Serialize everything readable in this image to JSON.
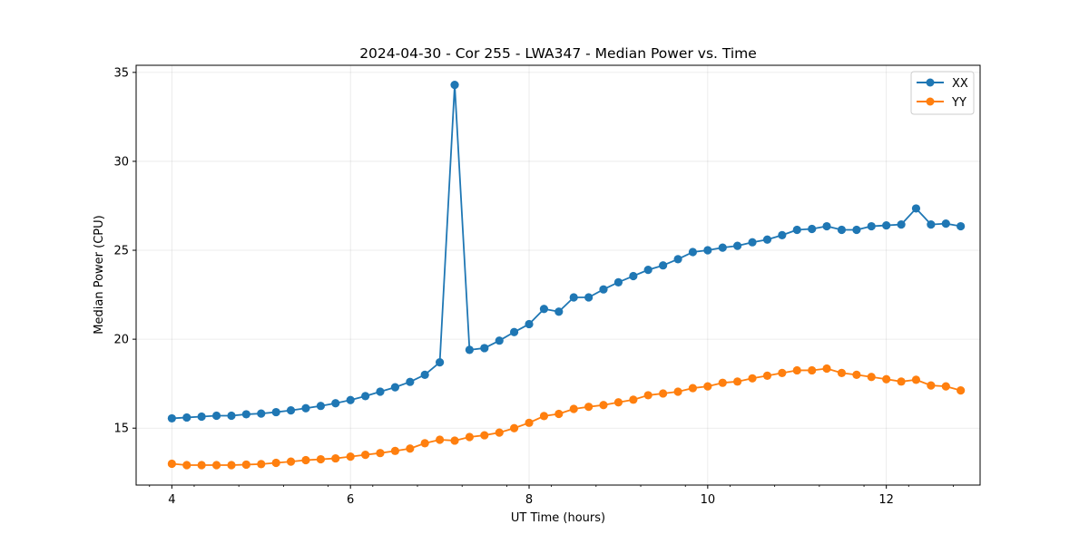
{
  "chart_data": {
    "type": "line",
    "title": "2024-04-30 - Cor 255 - LWA347 - Median Power vs. Time",
    "xlabel": "UT Time (hours)",
    "ylabel": "Median Power (CPU)",
    "xlim": [
      3.6,
      13.05
    ],
    "ylim": [
      11.8,
      35.4
    ],
    "xticks": [
      4,
      6,
      8,
      10,
      12
    ],
    "yticks": [
      15,
      20,
      25,
      30,
      35
    ],
    "xtick_labels": [
      "4",
      "6",
      "8",
      "10",
      "12"
    ],
    "ytick_labels": [
      "15",
      "20",
      "25",
      "30",
      "35"
    ],
    "grid": true,
    "legend_position": "top-right",
    "x": [
      4.0,
      4.167,
      4.333,
      4.5,
      4.667,
      4.833,
      5.0,
      5.167,
      5.333,
      5.5,
      5.667,
      5.833,
      6.0,
      6.167,
      6.333,
      6.5,
      6.667,
      6.833,
      7.0,
      7.167,
      7.333,
      7.5,
      7.667,
      7.833,
      8.0,
      8.167,
      8.333,
      8.5,
      8.667,
      8.833,
      9.0,
      9.167,
      9.333,
      9.5,
      9.667,
      9.833,
      10.0,
      10.167,
      10.333,
      10.5,
      10.667,
      10.833,
      11.0,
      11.167,
      11.333,
      11.5,
      11.667,
      11.833,
      12.0,
      12.167,
      12.333,
      12.5,
      12.667,
      12.833
    ],
    "series": [
      {
        "name": "XX",
        "color": "#1f77b4",
        "values": [
          15.55,
          15.6,
          15.65,
          15.7,
          15.7,
          15.78,
          15.82,
          15.9,
          16.0,
          16.12,
          16.25,
          16.4,
          16.58,
          16.8,
          17.05,
          17.3,
          17.6,
          18.0,
          18.7,
          34.3,
          19.4,
          19.5,
          19.92,
          20.4,
          20.85,
          21.7,
          21.55,
          22.35,
          22.35,
          22.8,
          23.2,
          23.55,
          23.9,
          24.15,
          24.5,
          24.9,
          25.0,
          25.15,
          25.25,
          25.45,
          25.6,
          25.85,
          26.15,
          26.2,
          26.35,
          26.15,
          26.15,
          26.35,
          26.4,
          26.45,
          27.35,
          26.45,
          26.5,
          26.35
        ]
      },
      {
        "name": "YY",
        "color": "#ff7f0e",
        "values": [
          13.0,
          12.92,
          12.92,
          12.92,
          12.92,
          12.95,
          12.98,
          13.05,
          13.12,
          13.2,
          13.25,
          13.3,
          13.4,
          13.5,
          13.6,
          13.72,
          13.85,
          14.15,
          14.35,
          14.3,
          14.5,
          14.6,
          14.75,
          15.0,
          15.3,
          15.68,
          15.8,
          16.08,
          16.2,
          16.3,
          16.45,
          16.6,
          16.85,
          16.95,
          17.05,
          17.25,
          17.35,
          17.55,
          17.62,
          17.8,
          17.95,
          18.1,
          18.25,
          18.25,
          18.35,
          18.1,
          18.0,
          17.88,
          17.75,
          17.62,
          17.72,
          17.4,
          17.35,
          17.12
        ]
      }
    ]
  }
}
